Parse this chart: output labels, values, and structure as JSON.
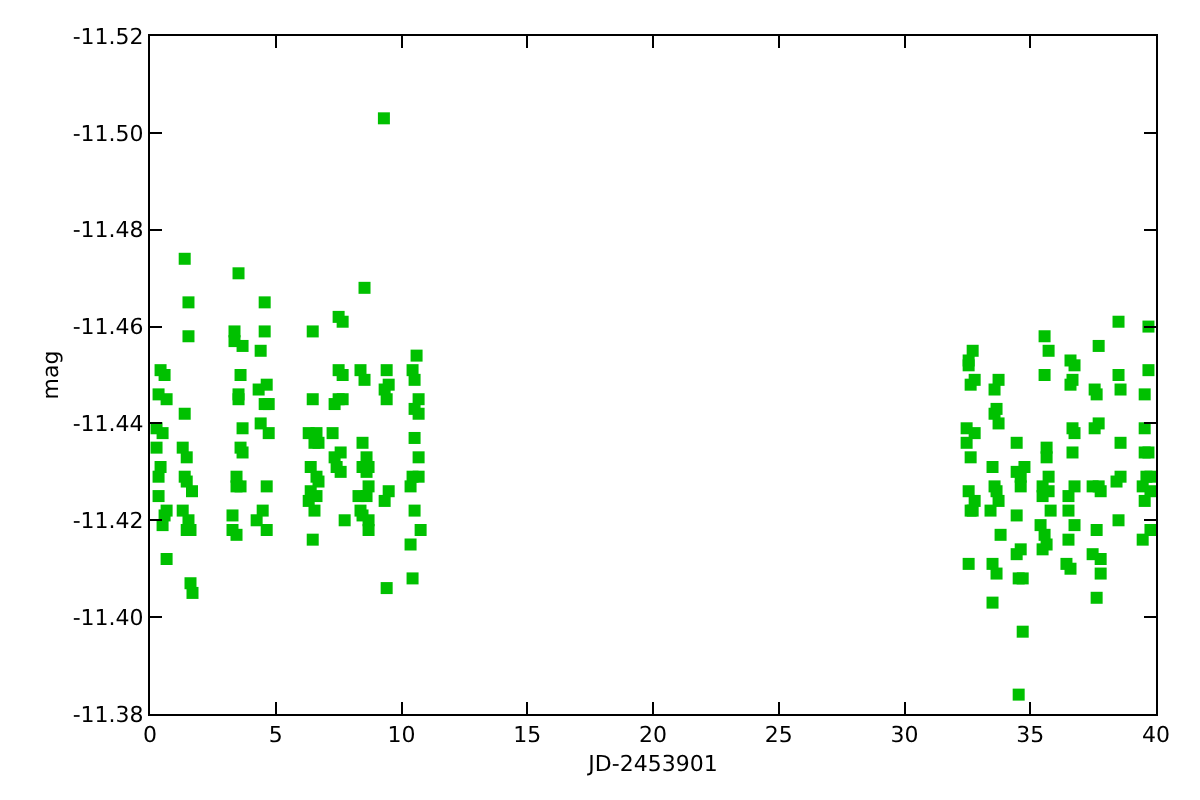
{
  "chart_data": {
    "type": "scatter",
    "xlabel": "JD-2453901",
    "ylabel": "mag",
    "marker": "square",
    "xlim": [
      0,
      40
    ],
    "xticks": [
      0,
      5,
      10,
      15,
      20,
      25,
      30,
      35,
      40
    ],
    "ylim": [
      -11.38,
      -11.52
    ],
    "yticks": [
      {
        "value": -11.52,
        "label": "-11.52"
      },
      {
        "value": -11.5,
        "label": "-11.50"
      },
      {
        "value": -11.48,
        "label": "-11.48"
      },
      {
        "value": -11.46,
        "label": "-11.46"
      },
      {
        "value": -11.44,
        "label": "-11.44"
      },
      {
        "value": -11.42,
        "label": "-11.42"
      },
      {
        "value": -11.4,
        "label": "-11.40"
      },
      {
        "value": -11.38,
        "label": "-11.38"
      }
    ],
    "series": [
      {
        "color": "#00c000",
        "x": [
          1.38,
          3.52,
          1.53,
          4.56,
          1.53,
          3.36,
          4.56,
          3.36,
          3.68,
          4.4,
          0.42,
          0.58,
          3.6,
          4.32,
          4.64,
          0.34,
          0.66,
          3.52,
          3.52,
          4.56,
          4.72,
          1.38,
          3.68,
          4.4,
          4.72,
          0.26,
          0.5,
          0.26,
          1.3,
          1.46,
          3.6,
          3.68,
          0.42,
          0.34,
          1.38,
          1.46,
          3.44,
          1.67,
          3.44,
          3.6,
          4.64,
          0.34,
          1.3,
          0.66,
          0.58,
          0.5,
          1.53,
          1.61,
          1.46,
          3.28,
          4.48,
          4.24,
          4.64,
          3.28,
          3.44,
          0.66,
          1.61,
          1.69,
          9.3,
          8.53,
          7.5,
          7.66,
          6.47,
          10.6,
          7.5,
          7.66,
          8.37,
          8.53,
          9.41,
          10.44,
          10.52,
          9.49,
          9.33,
          9.41,
          6.47,
          7.34,
          7.5,
          7.66,
          10.68,
          10.52,
          10.68,
          6.31,
          6.62,
          6.54,
          6.7,
          7.26,
          8.45,
          10.52,
          7.34,
          7.58,
          10.68,
          8.61,
          8.45,
          8.69,
          6.39,
          7.42,
          7.58,
          8.61,
          6.62,
          6.7,
          10.44,
          10.68,
          10.36,
          8.69,
          6.39,
          6.62,
          6.31,
          8.29,
          8.61,
          9.49,
          9.33,
          6.54,
          8.37,
          10.52,
          7.74,
          8.45,
          8.69,
          10.76,
          8.69,
          6.47,
          10.36,
          10.44,
          9.41,
          35.57,
          32.71,
          35.73,
          32.55,
          32.55,
          35.57,
          32.79,
          33.74,
          32.63,
          33.58,
          33.66,
          33.58,
          33.74,
          32.47,
          32.79,
          32.47,
          34.46,
          35.65,
          35.65,
          32.63,
          33.5,
          34.77,
          34.46,
          34.62,
          35.73,
          34.62,
          33.58,
          35.49,
          35.73,
          35.49,
          32.55,
          33.66,
          32.79,
          33.74,
          32.63,
          32.71,
          33.42,
          35.81,
          34.46,
          35.41,
          35.57,
          33.82,
          35.65,
          35.49,
          34.62,
          34.46,
          32.55,
          33.5,
          33.66,
          34.54,
          34.7,
          33.5,
          34.7,
          34.54,
          38.51,
          39.7,
          37.72,
          36.6,
          36.76,
          39.7,
          38.51,
          36.68,
          36.6,
          37.56,
          37.64,
          38.59,
          39.55,
          37.72,
          37.56,
          36.68,
          36.76,
          39.55,
          38.59,
          36.68,
          39.55,
          39.7,
          38.59,
          38.43,
          39.62,
          39.78,
          39.47,
          36.76,
          36.52,
          37.48,
          37.72,
          37.8,
          39.78,
          39.55,
          36.52,
          38.51,
          36.76,
          39.78,
          37.64,
          36.52,
          39.47,
          37.48,
          37.8,
          36.44,
          36.6,
          37.8,
          37.64
        ],
        "values": [
          -11.474,
          -11.471,
          -11.465,
          -11.465,
          -11.458,
          -11.459,
          -11.459,
          -11.457,
          -11.456,
          -11.455,
          -11.451,
          -11.45,
          -11.45,
          -11.447,
          -11.448,
          -11.446,
          -11.445,
          -11.446,
          -11.445,
          -11.444,
          -11.444,
          -11.442,
          -11.439,
          -11.44,
          -11.438,
          -11.439,
          -11.438,
          -11.435,
          -11.435,
          -11.433,
          -11.435,
          -11.434,
          -11.431,
          -11.429,
          -11.429,
          -11.428,
          -11.429,
          -11.426,
          -11.427,
          -11.427,
          -11.427,
          -11.425,
          -11.422,
          -11.422,
          -11.421,
          -11.419,
          -11.42,
          -11.418,
          -11.418,
          -11.421,
          -11.422,
          -11.42,
          -11.418,
          -11.418,
          -11.417,
          -11.412,
          -11.407,
          -11.405,
          -11.503,
          -11.468,
          -11.462,
          -11.461,
          -11.459,
          -11.454,
          -11.451,
          -11.45,
          -11.451,
          -11.449,
          -11.451,
          -11.451,
          -11.449,
          -11.448,
          -11.447,
          -11.445,
          -11.445,
          -11.444,
          -11.445,
          -11.445,
          -11.445,
          -11.443,
          -11.442,
          -11.438,
          -11.438,
          -11.436,
          -11.436,
          -11.438,
          -11.436,
          -11.437,
          -11.433,
          -11.434,
          -11.433,
          -11.433,
          -11.431,
          -11.431,
          -11.431,
          -11.431,
          -11.43,
          -11.43,
          -11.429,
          -11.428,
          -11.429,
          -11.429,
          -11.427,
          -11.427,
          -11.426,
          -11.425,
          -11.424,
          -11.425,
          -11.425,
          -11.426,
          -11.424,
          -11.422,
          -11.422,
          -11.422,
          -11.42,
          -11.421,
          -11.42,
          -11.418,
          -11.418,
          -11.416,
          -11.415,
          -11.408,
          -11.406,
          -11.458,
          -11.455,
          -11.455,
          -11.453,
          -11.452,
          -11.45,
          -11.449,
          -11.449,
          -11.448,
          -11.447,
          -11.443,
          -11.442,
          -11.44,
          -11.439,
          -11.438,
          -11.436,
          -11.436,
          -11.435,
          -11.433,
          -11.433,
          -11.431,
          -11.431,
          -11.43,
          -11.429,
          -11.429,
          -11.427,
          -11.427,
          -11.427,
          -11.426,
          -11.425,
          -11.426,
          -11.426,
          -11.424,
          -11.424,
          -11.422,
          -11.422,
          -11.422,
          -11.422,
          -11.421,
          -11.419,
          -11.417,
          -11.417,
          -11.415,
          -11.414,
          -11.414,
          -11.413,
          -11.411,
          -11.411,
          -11.409,
          -11.408,
          -11.408,
          -11.403,
          -11.397,
          -11.384,
          -11.461,
          -11.46,
          -11.456,
          -11.453,
          -11.452,
          -11.451,
          -11.45,
          -11.449,
          -11.448,
          -11.447,
          -11.446,
          -11.447,
          -11.446,
          -11.44,
          -11.439,
          -11.439,
          -11.438,
          -11.439,
          -11.436,
          -11.434,
          -11.434,
          -11.434,
          -11.429,
          -11.428,
          -11.429,
          -11.429,
          -11.427,
          -11.427,
          -11.425,
          -11.427,
          -11.427,
          -11.426,
          -11.426,
          -11.424,
          -11.422,
          -11.42,
          -11.419,
          -11.418,
          -11.418,
          -11.416,
          -11.416,
          -11.413,
          -11.412,
          -11.411,
          -11.41,
          -11.409,
          -11.404
        ]
      }
    ]
  }
}
